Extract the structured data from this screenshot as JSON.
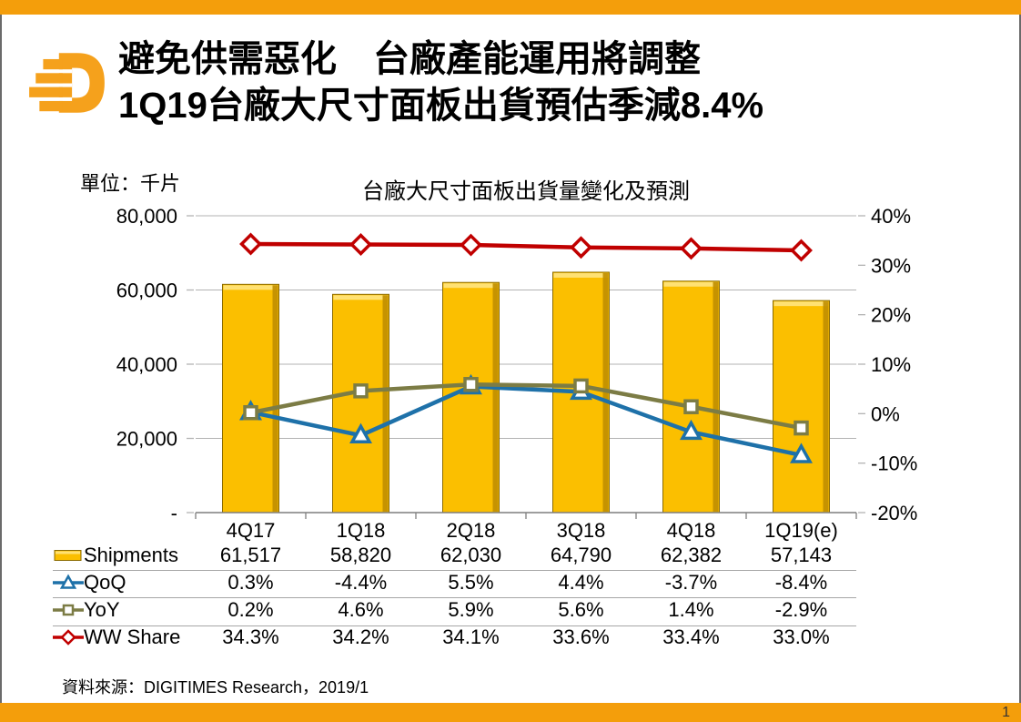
{
  "slide": {
    "title_line1": "避免供需惡化　台廠產能運用將調整",
    "title_line2": "1Q19台廠大尺寸面板出貨預估季減8.4%",
    "footer_source": "資料來源：DIGITIMES Research，2019/1",
    "page_number": "1",
    "accent_color": "#F49E0B",
    "logo_color": "#F5A11C",
    "logo_name": "digitimes-logo"
  },
  "chart": {
    "unit_label": "單位：千片",
    "title": "台廠大尺寸面板出貨量變化及預測"
  },
  "chart_data": {
    "type": "combo-bar-line",
    "categories": [
      "4Q17",
      "1Q18",
      "2Q18",
      "3Q18",
      "4Q18",
      "1Q19(e)"
    ],
    "left_axis": {
      "range": [
        0,
        80000
      ],
      "ticks": [
        {
          "value": 80000,
          "label": "80,000"
        },
        {
          "value": 60000,
          "label": "60,000"
        },
        {
          "value": 40000,
          "label": "40,000"
        },
        {
          "value": 20000,
          "label": "20,000"
        },
        {
          "value": 0,
          "label": "-"
        }
      ],
      "grid": true,
      "grid_color": "#b3b3b3",
      "axis_line_color": "#7f7f7f"
    },
    "right_axis": {
      "range": [
        -20,
        40
      ],
      "ticks": [
        {
          "value": 40,
          "label": "40%"
        },
        {
          "value": 30,
          "label": "30%"
        },
        {
          "value": 20,
          "label": "20%"
        },
        {
          "value": 10,
          "label": "10%"
        },
        {
          "value": 0,
          "label": "0%"
        },
        {
          "value": -10,
          "label": "-10%"
        },
        {
          "value": -20,
          "label": "-20%"
        }
      ]
    },
    "series": [
      {
        "name": "Shipments",
        "type": "bar",
        "axis": "left",
        "marker": "bar",
        "color": "#FBBF00",
        "color_top": "#FFE173",
        "color_side": "#C08E00",
        "color_edge": "#8A6A00",
        "values": [
          61517,
          58820,
          62030,
          64790,
          62382,
          57143
        ],
        "labels": [
          "61,517",
          "58,820",
          "62,030",
          "64,790",
          "62,382",
          "57,143"
        ]
      },
      {
        "name": "QoQ",
        "type": "line",
        "axis": "right",
        "marker": "triangle",
        "color": "#1E71A9",
        "values": [
          0.3,
          -4.4,
          5.5,
          4.4,
          -3.7,
          -8.4
        ],
        "labels": [
          "0.3%",
          "-4.4%",
          "5.5%",
          "4.4%",
          "-3.7%",
          "-8.4%"
        ]
      },
      {
        "name": "YoY",
        "type": "line",
        "axis": "right",
        "marker": "square",
        "color": "#7C7C45",
        "values": [
          0.2,
          4.6,
          5.9,
          5.6,
          1.4,
          -2.9
        ],
        "labels": [
          "0.2%",
          "4.6%",
          "5.9%",
          "5.6%",
          "1.4%",
          "-2.9%"
        ]
      },
      {
        "name": "WW Share",
        "type": "line",
        "axis": "right",
        "marker": "diamond",
        "color": "#C00000",
        "values": [
          34.3,
          34.2,
          34.1,
          33.6,
          33.4,
          33.0
        ],
        "labels": [
          "34.3%",
          "34.2%",
          "34.1%",
          "33.6%",
          "33.4%",
          "33.0%"
        ]
      }
    ],
    "legend_position": "data-table-left"
  }
}
